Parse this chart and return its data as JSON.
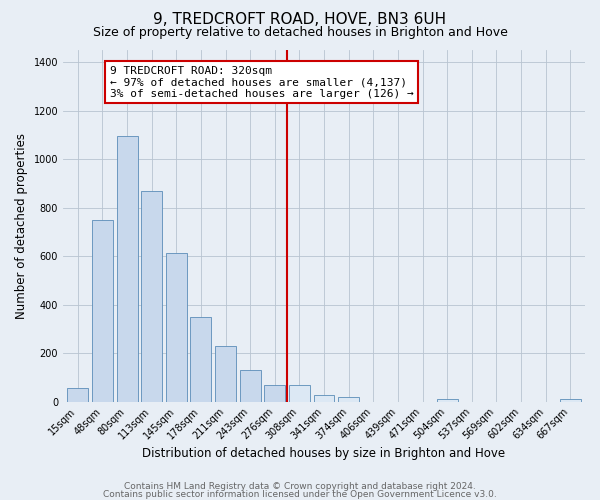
{
  "title": "9, TREDCROFT ROAD, HOVE, BN3 6UH",
  "subtitle": "Size of property relative to detached houses in Brighton and Hove",
  "xlabel": "Distribution of detached houses by size in Brighton and Hove",
  "ylabel": "Number of detached properties",
  "bar_labels": [
    "15sqm",
    "48sqm",
    "80sqm",
    "113sqm",
    "145sqm",
    "178sqm",
    "211sqm",
    "243sqm",
    "276sqm",
    "308sqm",
    "341sqm",
    "374sqm",
    "406sqm",
    "439sqm",
    "471sqm",
    "504sqm",
    "537sqm",
    "569sqm",
    "602sqm",
    "634sqm",
    "667sqm"
  ],
  "bar_values": [
    55,
    750,
    1095,
    870,
    615,
    350,
    228,
    130,
    70,
    70,
    28,
    18,
    0,
    0,
    0,
    10,
    0,
    0,
    0,
    0,
    10
  ],
  "bar_color_left": "#c8d8ec",
  "bar_color_right": "#dce8f4",
  "bar_edge_color": "#5b8db8",
  "vline_x_index": 9,
  "vline_color": "#cc0000",
  "annotation_line1": "9 TREDCROFT ROAD: 320sqm",
  "annotation_line2": "← 97% of detached houses are smaller (4,137)",
  "annotation_line3": "3% of semi-detached houses are larger (126) →",
  "annotation_box_color": "#ffffff",
  "annotation_box_edge": "#cc0000",
  "ylim": [
    0,
    1450
  ],
  "yticks": [
    0,
    200,
    400,
    600,
    800,
    1000,
    1200,
    1400
  ],
  "footer1": "Contains HM Land Registry data © Crown copyright and database right 2024.",
  "footer2": "Contains public sector information licensed under the Open Government Licence v3.0.",
  "bg_color": "#e8eef5",
  "plot_bg_color": "#e8eef5",
  "title_fontsize": 11,
  "subtitle_fontsize": 9,
  "axis_label_fontsize": 8.5,
  "tick_fontsize": 7,
  "annot_fontsize": 8,
  "footer_fontsize": 6.5
}
